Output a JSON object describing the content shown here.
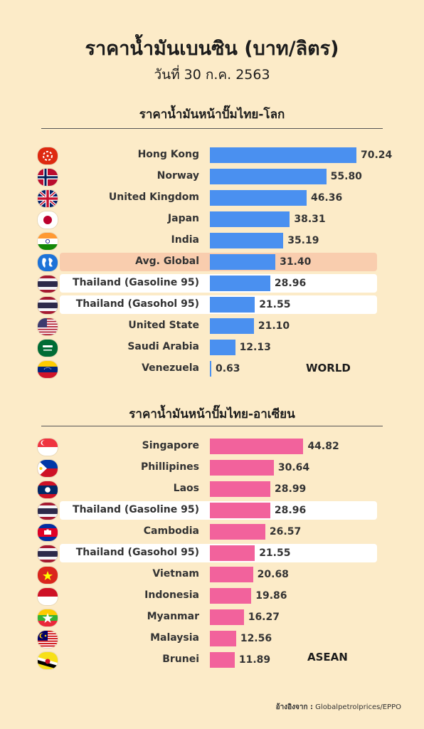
{
  "header": {
    "title": "ราคาน้ำมันเบนซิน (บาท/ลิตร)",
    "subtitle": "วันที่ 30 ก.ค. 2563"
  },
  "colors": {
    "world_bar": "#4a90f0",
    "asean_bar": "#f2629c",
    "background": "#fcebc8"
  },
  "chart_data": [
    {
      "type": "bar",
      "orientation": "horizontal",
      "title": "ราคาน้ำมันหน้าปั๊มไทย-โลก",
      "tag": "WORLD",
      "categories": [
        "Hong Kong",
        "Norway",
        "United Kingdom",
        "Japan",
        "India",
        "Avg. Global",
        "Thailand (Gasoline 95)",
        "Thailand (Gasohol 95)",
        "United State",
        "Saudi Arabia",
        "Venezuela"
      ],
      "values": [
        70.24,
        55.8,
        46.36,
        38.31,
        35.19,
        31.4,
        28.96,
        21.55,
        21.1,
        12.13,
        0.63
      ],
      "value_labels": [
        "70.24",
        "55.80",
        "46.36",
        "38.31",
        "35.19",
        "31.40",
        "28.96",
        "21.55",
        "21.10",
        "12.13",
        "0.63"
      ],
      "highlights": [
        "none",
        "none",
        "none",
        "none",
        "none",
        "avg",
        "thai",
        "thai",
        "none",
        "none",
        "none"
      ],
      "flags": [
        "hongkong",
        "norway",
        "uk",
        "japan",
        "india",
        "globe",
        "thailand",
        "thailand",
        "usa",
        "saudi",
        "venezuela"
      ],
      "xlim": [
        0,
        72
      ]
    },
    {
      "type": "bar",
      "orientation": "horizontal",
      "title": "ราคาน้ำมันหน้าปั๊มไทย-อาเซียน",
      "tag": "ASEAN",
      "categories": [
        "Singapore",
        "Phillipines",
        "Laos",
        "Thailand (Gasoline 95)",
        "Cambodia",
        "Thailand (Gasohol 95)",
        "Vietnam",
        "Indonesia",
        "Myanmar",
        "Malaysia",
        "Brunei"
      ],
      "values": [
        44.82,
        30.64,
        28.99,
        28.96,
        26.57,
        21.55,
        20.68,
        19.86,
        16.27,
        12.56,
        11.89
      ],
      "value_labels": [
        "44.82",
        "30.64",
        "28.99",
        "28.96",
        "26.57",
        "21.55",
        "20.68",
        "19.86",
        "16.27",
        "12.56",
        "11.89"
      ],
      "highlights": [
        "none",
        "none",
        "none",
        "thai",
        "none",
        "thai",
        "none",
        "none",
        "none",
        "none",
        "none"
      ],
      "flags": [
        "singapore",
        "philippines",
        "laos",
        "thailand",
        "cambodia",
        "thailand",
        "vietnam",
        "indonesia",
        "myanmar",
        "malaysia",
        "brunei"
      ],
      "xlim": [
        0,
        72
      ]
    }
  ],
  "footer": {
    "source_label": "อ้างอิงจาก :",
    "source_text": " Globalpetrolprices/EPPO"
  }
}
